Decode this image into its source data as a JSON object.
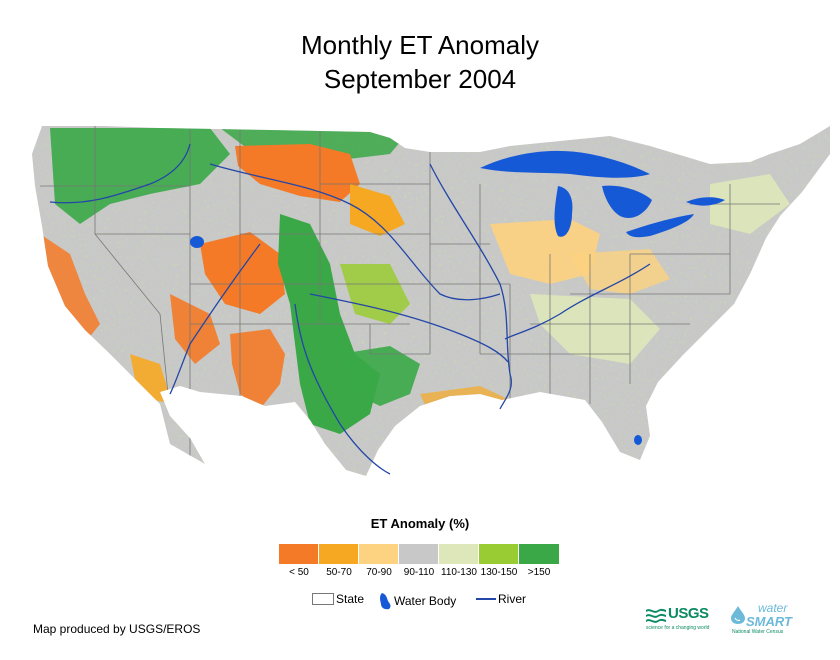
{
  "title": {
    "line1": "Monthly ET Anomaly",
    "line2": "September 2004"
  },
  "legend": {
    "title": "ET Anomaly (%)",
    "classes": [
      {
        "label": "< 50",
        "color": "#f47a27"
      },
      {
        "label": "50-70",
        "color": "#f7a822"
      },
      {
        "label": "70-90",
        "color": "#fdd280"
      },
      {
        "label": "90-110",
        "color": "#c8c8c8"
      },
      {
        "label": "110-130",
        "color": "#dde7b9"
      },
      {
        "label": "130-150",
        "color": "#99cc33"
      },
      {
        "label": ">150",
        "color": "#3aa847"
      }
    ]
  },
  "map_key": {
    "state": "State",
    "water_body": "Water Body",
    "river": "River",
    "water_color": "#1659d6",
    "river_color": "#2346a8"
  },
  "credit": "Map produced by USGS/EROS",
  "logos": {
    "usgs": "USGS",
    "usgs_tagline": "science for a changing world",
    "watersmart_top": "water",
    "watersmart_main": "SMART",
    "watersmart_tagline": "National Water Census"
  }
}
